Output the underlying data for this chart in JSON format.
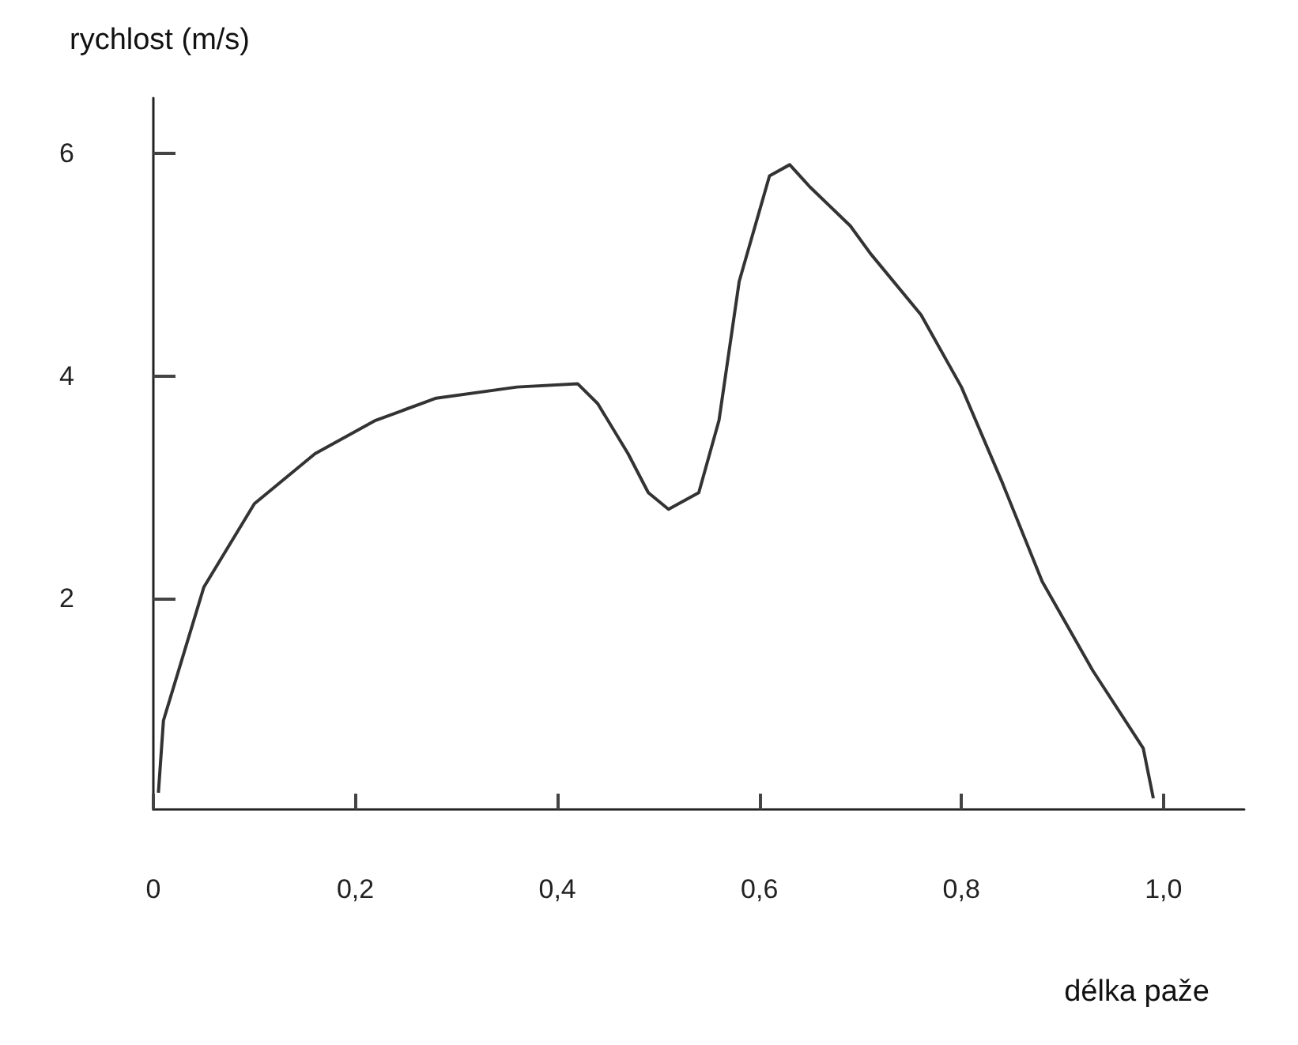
{
  "chart_data": {
    "type": "line",
    "xlabel": "délka paže",
    "ylabel": "rychlost (m/s)",
    "xlim": [
      0,
      1.08
    ],
    "ylim": [
      0.1,
      6.5
    ],
    "xticks": [
      {
        "value": 0,
        "label": "0"
      },
      {
        "value": 0.2,
        "label": "0,2"
      },
      {
        "value": 0.4,
        "label": "0,4"
      },
      {
        "value": 0.6,
        "label": "0,6"
      },
      {
        "value": 0.8,
        "label": "0,8"
      },
      {
        "value": 1.0,
        "label": "1,0"
      }
    ],
    "yticks": [
      2,
      4,
      6
    ],
    "x": [
      0.005,
      0.01,
      0.03,
      0.05,
      0.1,
      0.16,
      0.22,
      0.28,
      0.36,
      0.42,
      0.44,
      0.47,
      0.49,
      0.51,
      0.54,
      0.56,
      0.58,
      0.61,
      0.63,
      0.65,
      0.69,
      0.71,
      0.76,
      0.8,
      0.84,
      0.88,
      0.93,
      0.98,
      0.99
    ],
    "series": [
      {
        "color": "#333333",
        "values": [
          0.25,
          0.9,
          1.5,
          2.1,
          2.85,
          3.3,
          3.6,
          3.8,
          3.9,
          3.93,
          3.75,
          3.3,
          2.95,
          2.8,
          2.95,
          3.6,
          4.85,
          5.8,
          5.9,
          5.7,
          5.35,
          5.1,
          4.55,
          3.9,
          3.05,
          2.15,
          1.35,
          0.65,
          0.2
        ]
      }
    ],
    "marker": "none",
    "line_style": "solid"
  }
}
